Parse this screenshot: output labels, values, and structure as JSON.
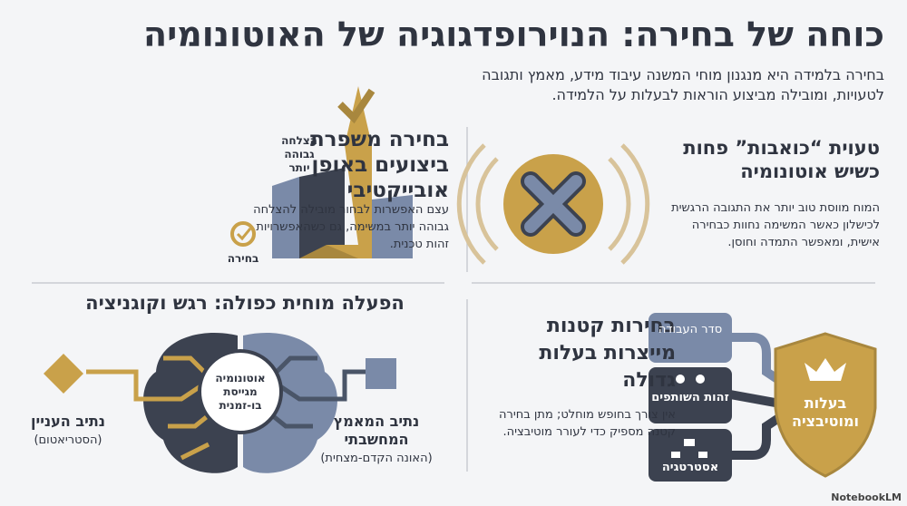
{
  "header": {
    "title": "כוחה של בחירה: הנוירופדגוגיה של האוטונומיה",
    "subtitle": "בחירה בלמידה היא מנגנון מוחי המשנה עיבוד מידע, מאמץ ותגובה לטעויות, ומובילה מביצוע הוראות לבעלות על הלמידה."
  },
  "panels": {
    "errors": {
      "title": "טעוית “כואבות” פחות כשיש אוטונומיה",
      "text": "המוח מווסת טוב יותר את התגובה הרגשית לכישלון כאשר המשימה נחוות כבחירה אישית, ומאפשר התמדה וחוסן."
    },
    "performance": {
      "title": "בחירה משפרת ביצועים באופן אובייקטיבי",
      "text": "עצם האפשרות לבחור מובילה להצלחה גבוהה יותר במשימה, גם כשהאפשרויות זהות טכנית.",
      "label_success": "הצלחה גבוהה יותר",
      "label_choice": "בחירה"
    },
    "brain": {
      "title": "הפעלה מוחית כפולה: רגש וקוגניציה",
      "center": "אוטונומיה מגייסת בו-זמנית",
      "left_label": "נתיב העניין",
      "left_sub": "(הסטריאטום)",
      "right_label": "נתיב המאמץ המחשבתי",
      "right_sub": "(האונה הקדם-מצחית)"
    },
    "ownership": {
      "title": "בחירות קטנות מייצרות בעלות גדולה",
      "text": "אין צורך בחופש מוחלט; מתן בחירה קטנה מספיק כדי לעורר מוטיבציה.",
      "items": [
        "סדר העבודה",
        "זהות השותפים",
        "אסטרטגיה"
      ],
      "shield": "בעלות ומוטיבציה"
    }
  },
  "footer": {
    "brand": "NotebookLM"
  }
}
